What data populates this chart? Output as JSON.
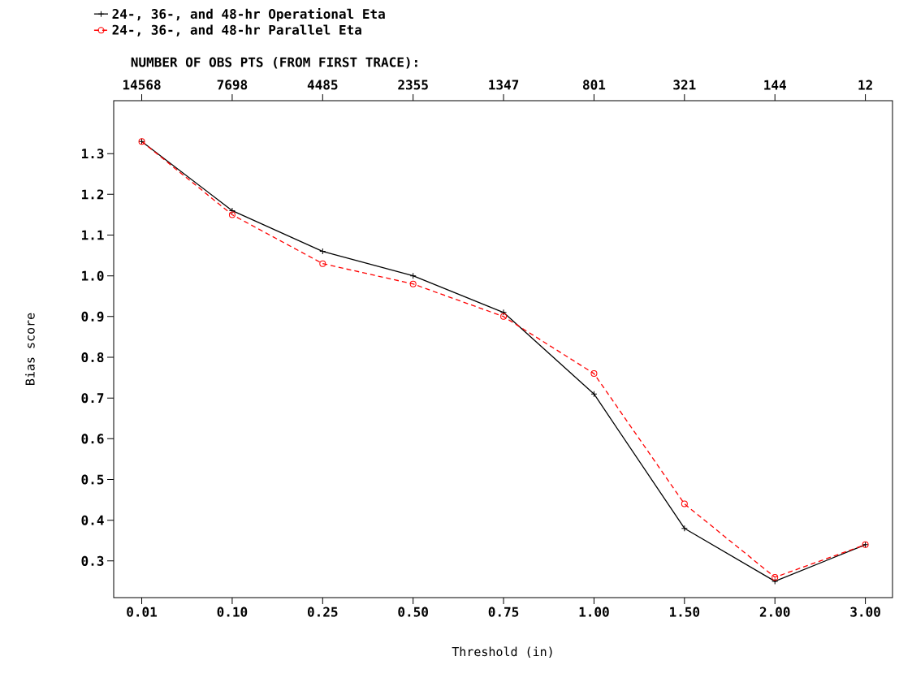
{
  "chart_data": {
    "type": "line",
    "xlabel": "Threshold (in)",
    "ylabel": "Bias score",
    "x2label": "NUMBER OF OBS PTS (FROM FIRST TRACE):",
    "categories": [
      "0.01",
      "0.10",
      "0.25",
      "0.50",
      "0.75",
      "1.00",
      "1.50",
      "2.00",
      "3.00"
    ],
    "series": [
      {
        "name": "24-, 36-, and 48-hr Operational Eta",
        "color": "#000000",
        "marker": "cross",
        "line_style": "solid",
        "values": [
          1.33,
          1.16,
          1.06,
          1.0,
          0.91,
          0.71,
          0.38,
          0.25,
          0.34
        ]
      },
      {
        "name": "24-, 36-, and 48-hr Parallel Eta",
        "color": "#ff0000",
        "marker": "circle",
        "line_style": "dashed",
        "values": [
          1.33,
          1.15,
          1.03,
          0.98,
          0.9,
          0.76,
          0.44,
          0.26,
          0.34
        ]
      }
    ],
    "ylim": [
      0.21,
      1.43
    ],
    "yticks": [
      0.3,
      0.4,
      0.5,
      0.6,
      0.7,
      0.8,
      0.9,
      {
        "value": 1.0,
        "label": "1.0"
      },
      1.1,
      1.2,
      1.3
    ],
    "legend": "top",
    "annotations": [
      {
        "text": "14568",
        "x": "0.01"
      },
      {
        "text": "7698",
        "x": "0.10"
      },
      {
        "text": "4485",
        "x": "0.25"
      },
      {
        "text": "2355",
        "x": "0.50"
      },
      {
        "text": "1347",
        "x": "0.75"
      },
      {
        "text": "801",
        "x": "1.00"
      },
      {
        "text": "321",
        "x": "1.50"
      },
      {
        "text": "144",
        "x": "2.00"
      },
      {
        "text": "12",
        "x": "3.00"
      }
    ]
  }
}
